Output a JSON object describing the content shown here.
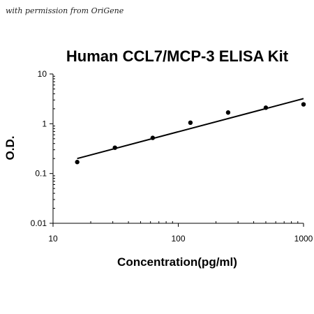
{
  "note": "with permission from OriGene",
  "chart_data": {
    "type": "scatter",
    "title": "Human CCL7/MCP-3 ELISA Kit",
    "xlabel": "Concentration(pg/ml)",
    "ylabel": "O.D.",
    "x_scale": "log",
    "y_scale": "log",
    "xlim": [
      10,
      1000
    ],
    "ylim": [
      0.01,
      10
    ],
    "x_ticks": [
      10,
      100,
      1000
    ],
    "x_tick_labels": [
      "10",
      "100",
      "1000"
    ],
    "y_ticks": [
      0.01,
      0.1,
      1,
      10
    ],
    "y_tick_labels": [
      "0.01",
      "0.1",
      "1",
      "10"
    ],
    "grid": false,
    "legend": "none",
    "points": [
      {
        "x": 15.6,
        "y": 0.17
      },
      {
        "x": 31.2,
        "y": 0.33
      },
      {
        "x": 62.5,
        "y": 0.52
      },
      {
        "x": 125,
        "y": 1.05
      },
      {
        "x": 250,
        "y": 1.68
      },
      {
        "x": 500,
        "y": 2.1
      },
      {
        "x": 1000,
        "y": 2.45
      }
    ],
    "fit_line": [
      {
        "x": 15.6,
        "y": 0.2
      },
      {
        "x": 1000,
        "y": 3.2
      }
    ],
    "colors": {
      "points": "#000000",
      "line": "#000000",
      "axes": "#000000"
    }
  }
}
